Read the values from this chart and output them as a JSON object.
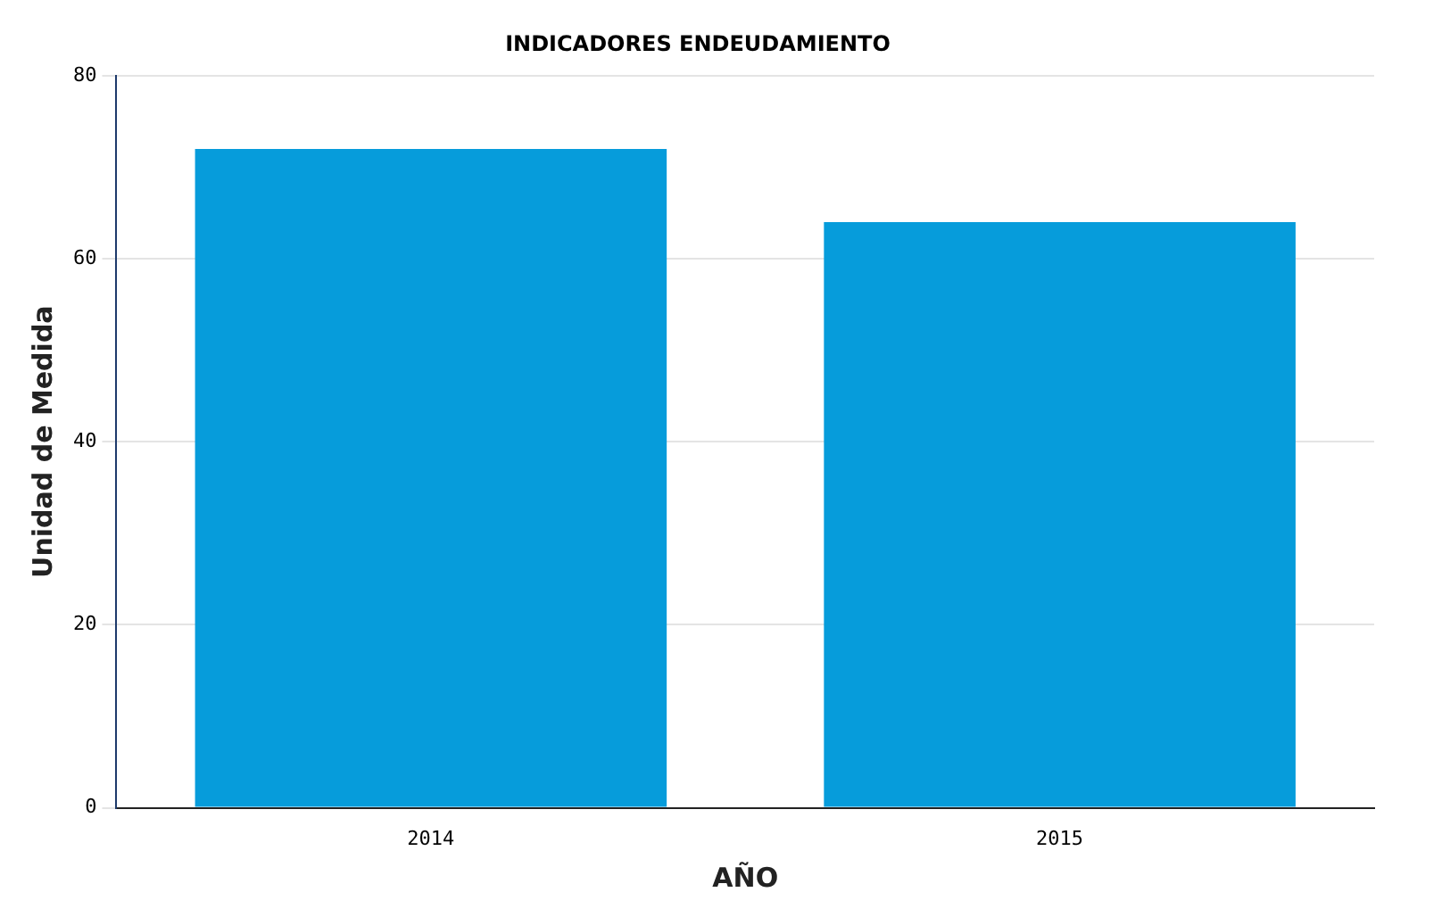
{
  "chart_data": {
    "type": "bar",
    "title": "INDICADORES ENDEUDAMIENTO",
    "xlabel": "AÑO",
    "ylabel": "Unidad de Medida",
    "categories": [
      "2014",
      "2015"
    ],
    "series": [
      {
        "color": "#069cdb",
        "values": [
          72,
          64
        ]
      }
    ],
    "ylim": [
      0,
      80
    ],
    "yticks": [
      0,
      20,
      40,
      60,
      80
    ],
    "grid": "y",
    "legend": false
  }
}
